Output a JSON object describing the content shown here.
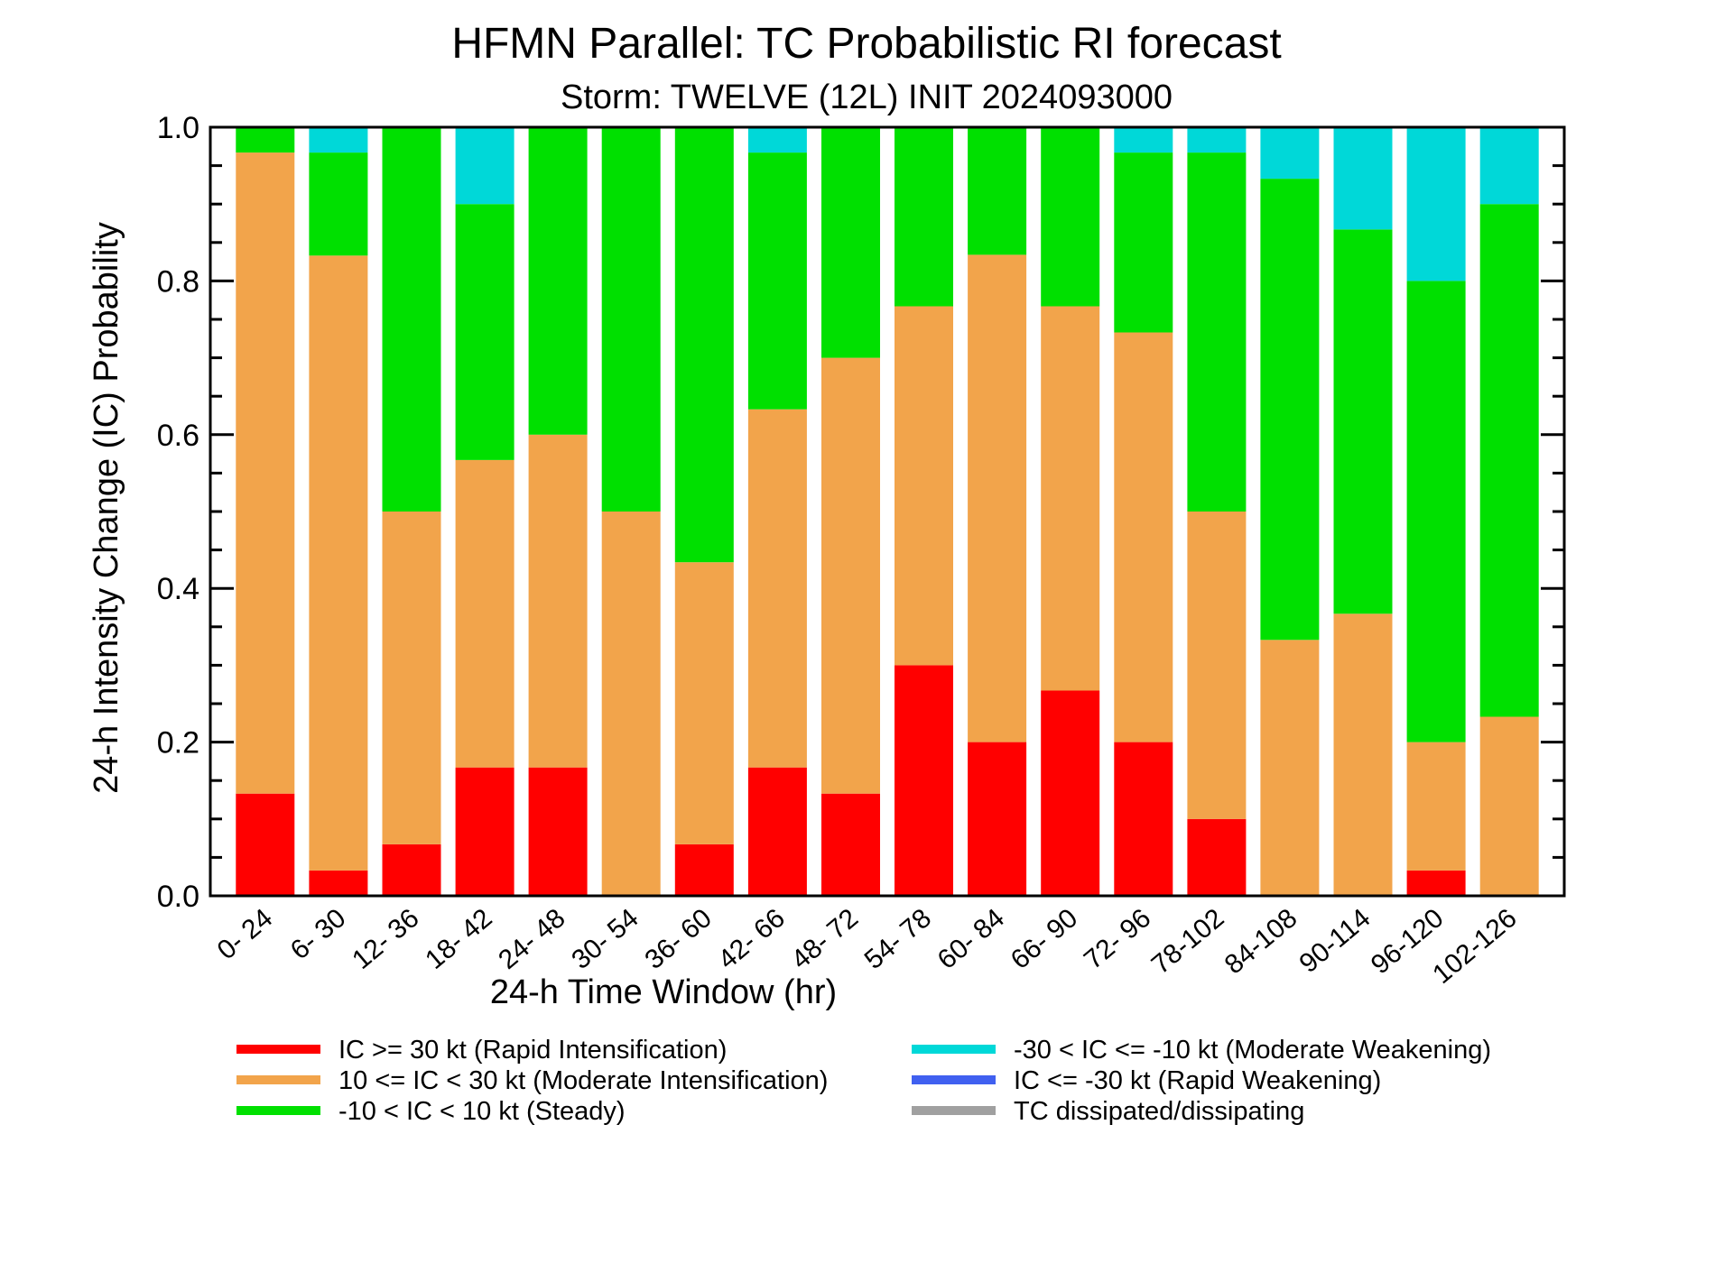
{
  "chart_data": {
    "type": "bar",
    "stacked": true,
    "title": "HFMN Parallel: TC Probabilistic RI forecast",
    "subtitle": "Storm: TWELVE (12L) INIT 2024093000",
    "xlabel": "24-h Time Window (hr)",
    "ylabel": "24-h Intensity Change (IC) Probability",
    "ylim": [
      0,
      1
    ],
    "yticks": [
      "0.0",
      "0.2",
      "0.4",
      "0.6",
      "0.8",
      "1.0"
    ],
    "categories": [
      "0- 24",
      "6- 30",
      "12- 36",
      "18- 42",
      "24- 48",
      "30- 54",
      "36- 60",
      "42- 66",
      "48- 72",
      "54- 78",
      "60- 84",
      "66- 90",
      "72- 96",
      "78-102",
      "84-108",
      "90-114",
      "96-120",
      "102-126"
    ],
    "legend_position": "bottom",
    "series": [
      {
        "name": "IC >= 30 kt (Rapid Intensification)",
        "color": "#ff0000",
        "values": [
          0.133,
          0.033,
          0.067,
          0.167,
          0.167,
          0.0,
          0.067,
          0.167,
          0.133,
          0.3,
          0.2,
          0.267,
          0.2,
          0.1,
          0.0,
          0.0,
          0.033,
          0.0
        ]
      },
      {
        "name": "10 <= IC < 30 kt (Moderate Intensification)",
        "color": "#f2a44b",
        "values": [
          0.834,
          0.8,
          0.433,
          0.4,
          0.433,
          0.5,
          0.367,
          0.466,
          0.567,
          0.467,
          0.634,
          0.5,
          0.533,
          0.4,
          0.333,
          0.367,
          0.167,
          0.233
        ]
      },
      {
        "name": "-10 < IC < 10 kt (Steady)",
        "color": "#00e000",
        "values": [
          0.033,
          0.134,
          0.5,
          0.333,
          0.4,
          0.5,
          0.566,
          0.334,
          0.3,
          0.233,
          0.166,
          0.233,
          0.234,
          0.467,
          0.6,
          0.5,
          0.6,
          0.667
        ]
      },
      {
        "name": "-30 < IC <= -10 kt (Moderate Weakening)",
        "color": "#00d8d8",
        "values": [
          0.0,
          0.033,
          0.0,
          0.1,
          0.0,
          0.0,
          0.0,
          0.033,
          0.0,
          0.0,
          0.0,
          0.0,
          0.033,
          0.033,
          0.067,
          0.133,
          0.2,
          0.1
        ]
      },
      {
        "name": "IC <= -30 kt (Rapid Weakening)",
        "color": "#4060f0",
        "values": [
          0,
          0,
          0,
          0,
          0,
          0,
          0,
          0,
          0,
          0,
          0,
          0,
          0,
          0,
          0,
          0,
          0,
          0
        ]
      },
      {
        "name": "TC dissipated/dissipating",
        "color": "#a0a0a0",
        "values": [
          0,
          0,
          0,
          0,
          0,
          0,
          0,
          0,
          0,
          0,
          0,
          0,
          0,
          0,
          0,
          0,
          0,
          0
        ]
      }
    ]
  }
}
